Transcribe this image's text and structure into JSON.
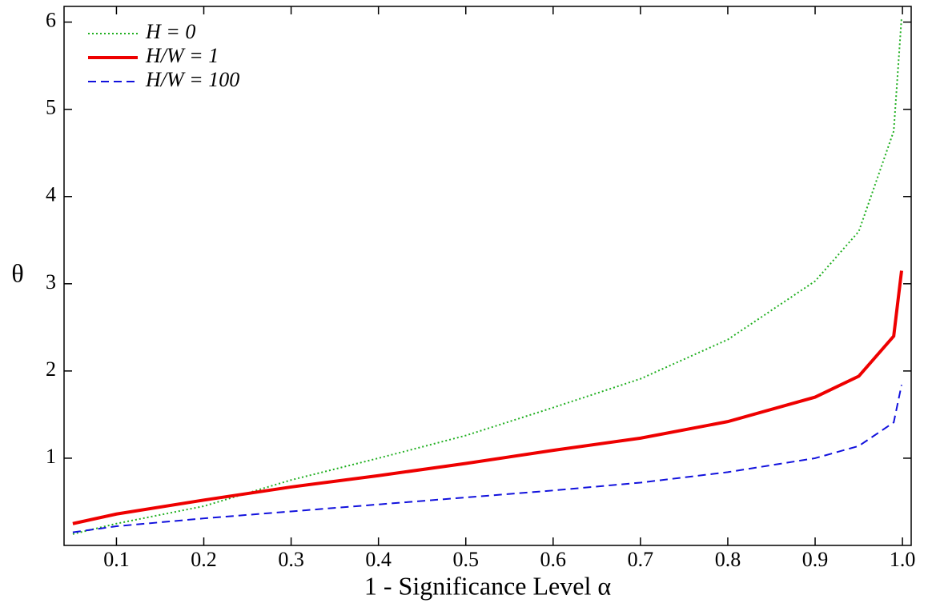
{
  "chart_data": {
    "type": "line",
    "x_label": "1 -  Significance Level α",
    "y_label": "θ",
    "x": [
      0.05,
      0.1,
      0.2,
      0.3,
      0.4,
      0.5,
      0.6,
      0.7,
      0.8,
      0.9,
      0.95,
      0.99,
      0.999
    ],
    "series": [
      {
        "name": "H = 0",
        "color": "#22b022",
        "line_style": "dotted",
        "values": [
          0.13,
          0.25,
          0.45,
          0.75,
          1.0,
          1.26,
          1.58,
          1.91,
          2.36,
          3.03,
          3.6,
          4.75,
          6.05
        ]
      },
      {
        "name": "H/W = 1",
        "color": "#ee0000",
        "line_style": "solid",
        "values": [
          0.25,
          0.36,
          0.52,
          0.67,
          0.8,
          0.94,
          1.09,
          1.23,
          1.42,
          1.7,
          1.94,
          2.4,
          3.15
        ]
      },
      {
        "name": "H/W = 100",
        "color": "#1111dd",
        "line_style": "dashed",
        "values": [
          0.15,
          0.22,
          0.31,
          0.39,
          0.47,
          0.55,
          0.63,
          0.72,
          0.84,
          1.0,
          1.14,
          1.41,
          1.84
        ]
      }
    ],
    "xlim": [
      0.04,
      1.01
    ],
    "ylim": [
      0,
      6.18
    ],
    "xticks": [
      0.1,
      0.2,
      0.3,
      0.4,
      0.5,
      0.6,
      0.7,
      0.8,
      0.9,
      {
        "value": 1,
        "label": "1.0"
      }
    ],
    "yticks": [
      1,
      2,
      3,
      4,
      5,
      6
    ],
    "legend": "upper left"
  }
}
